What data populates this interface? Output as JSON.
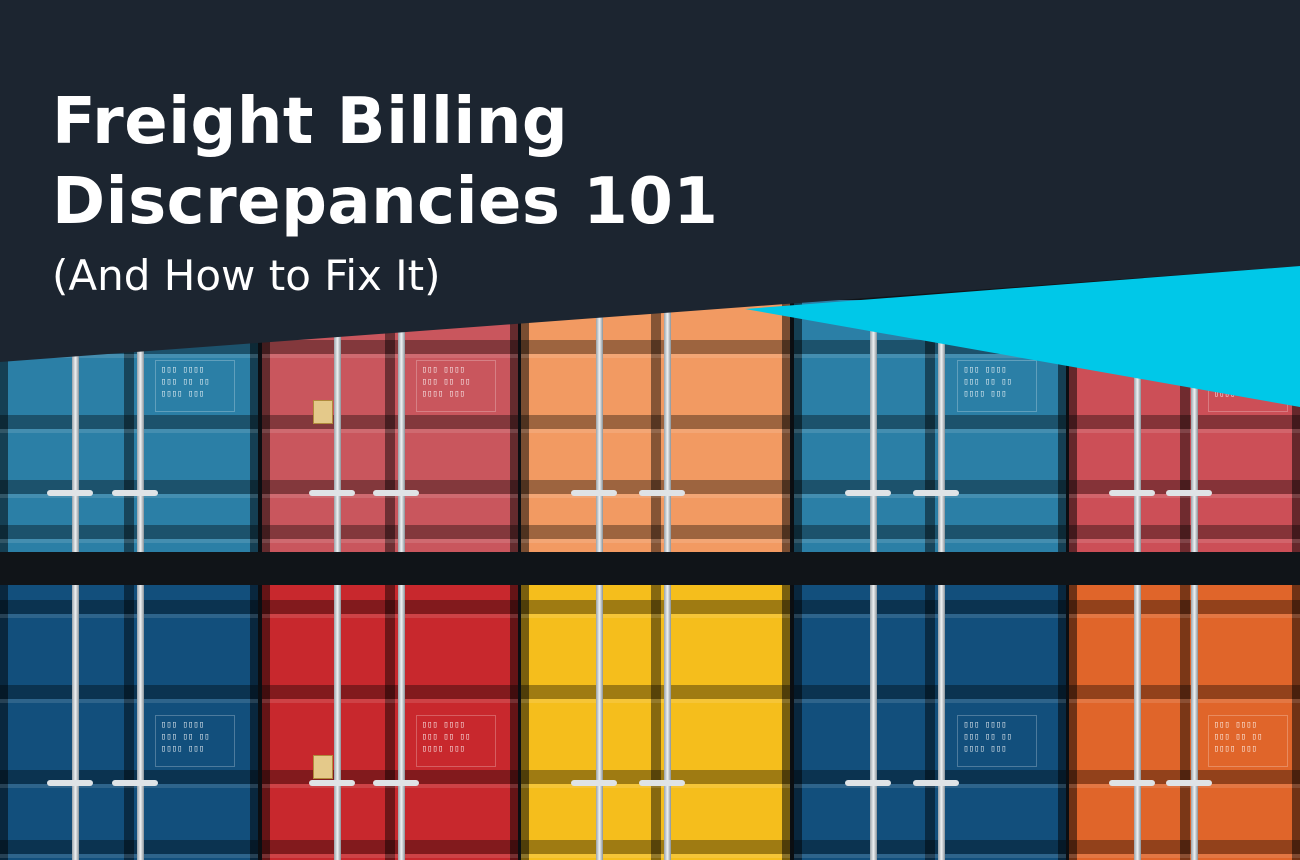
{
  "hero": {
    "title_line1": "Freight Billing",
    "title_line2": "Discrepancies 101",
    "subtitle": "(And How to Fix It)"
  },
  "colors": {
    "background": "#1c2530",
    "accent": "#00c8e8",
    "containers_top": [
      "#2b7fa6",
      "#c9565d",
      "#f29a62",
      "#2b7fa6",
      "#cc4f57"
    ],
    "containers_bottom": [
      "#124f7c",
      "#c8282d",
      "#f5be1c",
      "#124f7c",
      "#e0652a"
    ]
  }
}
